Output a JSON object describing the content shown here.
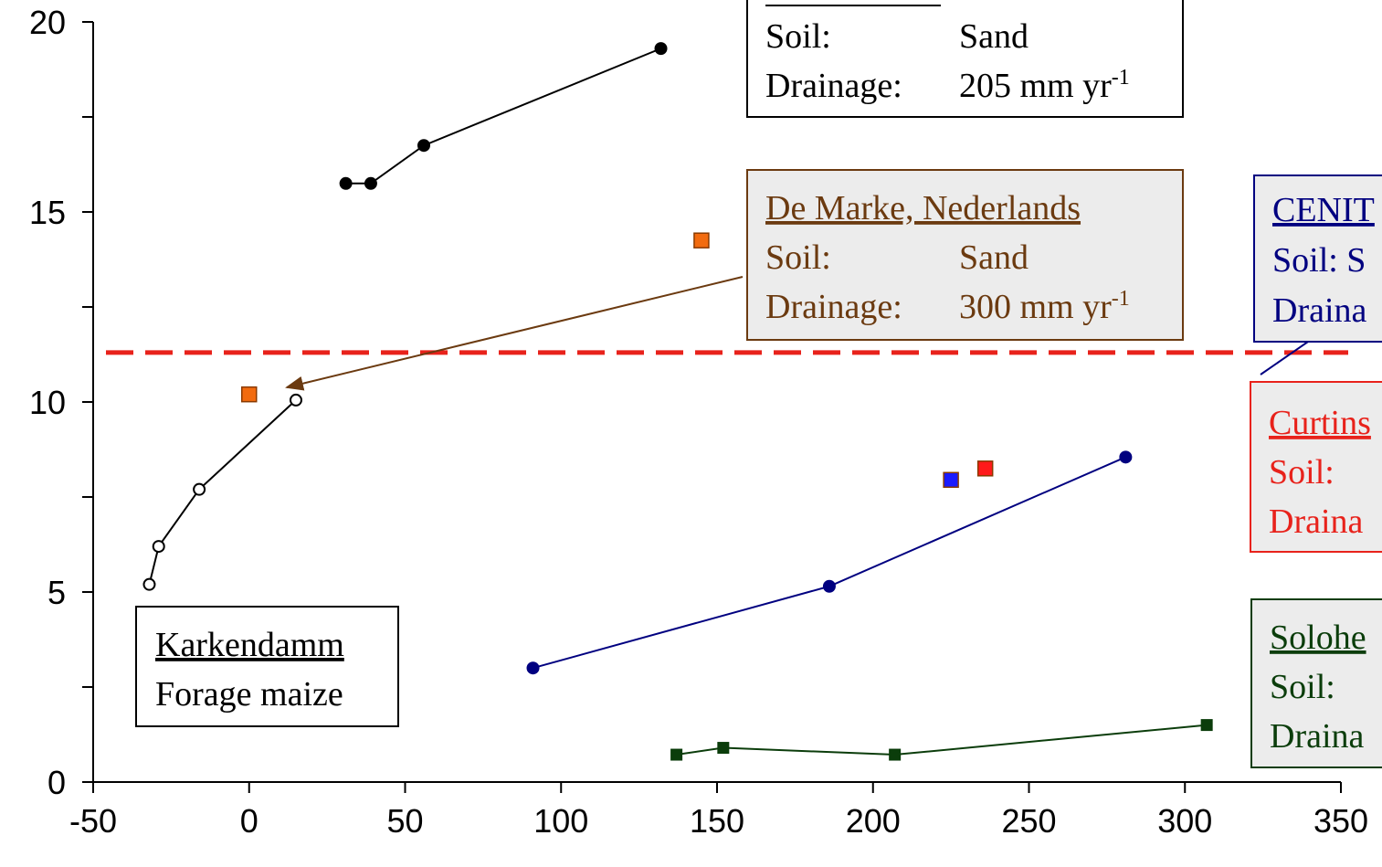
{
  "chart_data": {
    "type": "scatter",
    "xlim": [
      -50,
      350
    ],
    "ylim": [
      0,
      20
    ],
    "x_ticks": [
      -50,
      0,
      50,
      100,
      150,
      200,
      250,
      300,
      350
    ],
    "y_ticks": [
      0,
      5,
      10,
      15,
      20
    ],
    "grid": false,
    "reference_line": {
      "y": 11.3,
      "color": "#e8221b",
      "style": "dashed"
    },
    "series": [
      {
        "id": "black-filled",
        "marker": "circle",
        "filled": true,
        "color": "#000000",
        "line": true,
        "points": [
          [
            31,
            15.75
          ],
          [
            39,
            15.75
          ],
          [
            56,
            16.75
          ],
          [
            132,
            19.3
          ]
        ]
      },
      {
        "id": "karkendamm",
        "marker": "circle",
        "filled": false,
        "color": "#000000",
        "line": true,
        "points": [
          [
            -32,
            5.2
          ],
          [
            -29,
            6.2
          ],
          [
            -16,
            7.7
          ],
          [
            15,
            10.05
          ]
        ]
      },
      {
        "id": "de-marke",
        "marker": "square",
        "filled": true,
        "color": "#f26b0f",
        "line": false,
        "points": [
          [
            0,
            10.2
          ],
          [
            145,
            14.25
          ]
        ]
      },
      {
        "id": "cenit",
        "marker": "circle",
        "filled": true,
        "color": "#000080",
        "line": true,
        "points": [
          [
            91,
            3.0
          ],
          [
            186,
            5.15
          ],
          [
            281,
            8.55
          ]
        ]
      },
      {
        "id": "blue-square",
        "marker": "square",
        "filled": true,
        "color": "#1a1aff",
        "line": false,
        "points": [
          [
            225,
            7.95
          ]
        ]
      },
      {
        "id": "red-square",
        "marker": "square",
        "filled": true,
        "color": "#ff1a1a",
        "line": false,
        "points": [
          [
            236,
            8.25
          ]
        ]
      },
      {
        "id": "solohead",
        "marker": "square",
        "filled": true,
        "color": "#0b3d0b",
        "line": true,
        "points": [
          [
            137,
            0.72
          ],
          [
            152,
            0.9
          ],
          [
            207,
            0.72
          ],
          [
            307,
            1.5
          ]
        ]
      }
    ],
    "annotations": {
      "top_box": {
        "soil_label": "Soil:",
        "soil_value": "Sand",
        "drainage_label": "Drainage:",
        "drainage_value": "205 mm yr",
        "drainage_sup": "-1"
      },
      "de_marke": {
        "title": "De Marke, Nederlands",
        "soil_label": "Soil:",
        "soil_value": "Sand",
        "drainage_label": "Drainage:",
        "drainage_value": "300 mm yr",
        "drainage_sup": "-1"
      },
      "cenit": {
        "title": "CENIT",
        "soil_line": "Soil:  S",
        "drainage_line": "Draina"
      },
      "curtins": {
        "title": "Curtins",
        "soil_line": "Soil:",
        "drainage_line": "Draina"
      },
      "solohead": {
        "title": "Solohe",
        "soil_line": "Soil:",
        "drainage_line": "Draina"
      },
      "karkendamm": {
        "title": "Karkendamm",
        "subtitle": "Forage maize"
      }
    },
    "colors": {
      "de_marke_text": "#6b3a10",
      "cenit_text": "#000080",
      "curtins_text": "#e8221b",
      "solohead_text": "#0b3d0b",
      "box_fill": "#ececec"
    }
  }
}
